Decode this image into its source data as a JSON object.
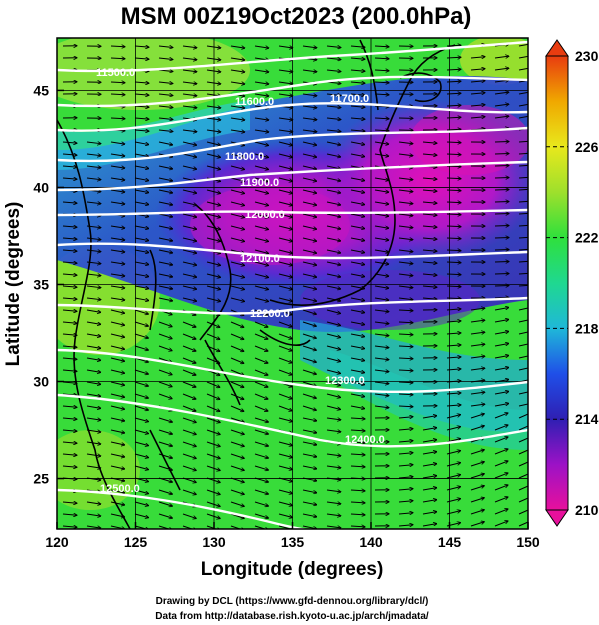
{
  "title": "MSM 00Z19Oct2023 (200.0hPa)",
  "x_axis": {
    "label": "Longitude (degrees)",
    "ticks": [
      "120",
      "125",
      "130",
      "135",
      "140",
      "145",
      "150"
    ]
  },
  "y_axis": {
    "label": "Latitude  (degrees)",
    "ticks": [
      "25",
      "30",
      "35",
      "40",
      "45"
    ]
  },
  "colorbar": {
    "ticks": [
      "230",
      "226",
      "222",
      "218",
      "214",
      "210"
    ],
    "colors": [
      "#e8109c",
      "#9c12c6",
      "#2f1fb3",
      "#1f4fe8",
      "#1fb8d8",
      "#1fd890",
      "#2fe03c",
      "#9ee02c",
      "#e8e81c",
      "#f0a800",
      "#e83c10"
    ]
  },
  "contours": [
    "11500.0",
    "11600.0",
    "11700.0",
    "11800.0",
    "11900.0",
    "12000.0",
    "12100.0",
    "12200.0",
    "12300.0",
    "12400.0",
    "12500.0"
  ],
  "credits": {
    "line1": "Drawing by DCL (https://www.gfd-dennou.org/library/dcl/)",
    "line2": "Data from http://database.rish.kyoto-u.ac.jp/arch/jmadata/"
  }
}
